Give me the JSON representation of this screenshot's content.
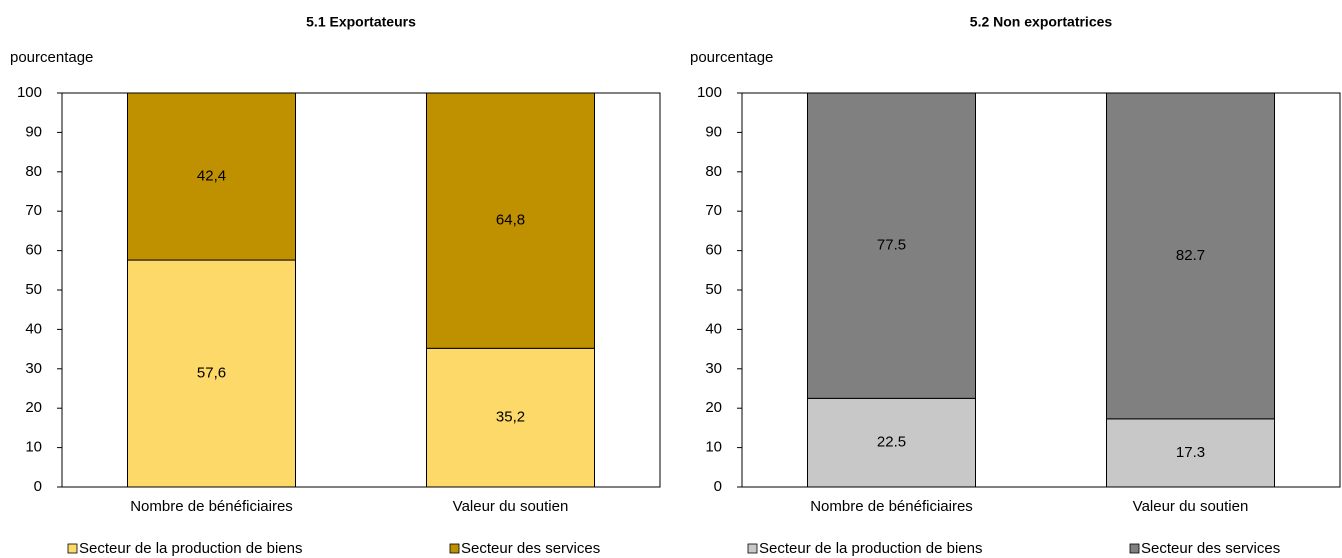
{
  "chart_data": [
    {
      "type": "bar",
      "stacked": true,
      "title": "5.1 Exportateurs",
      "y_label": "pourcentage",
      "categories": [
        "Nombre de bénéficiaires",
        "Valeur du soutien"
      ],
      "series": [
        {
          "name": "Secteur de la production de biens",
          "color": "#fdd96a",
          "values": [
            57.6,
            35.2
          ],
          "value_labels": [
            "57,6",
            "35,2"
          ]
        },
        {
          "name": "Secteur des services",
          "color": "#bf9000",
          "values": [
            42.4,
            64.8
          ],
          "value_labels": [
            "42,4",
            "64,8"
          ]
        }
      ],
      "ylim": [
        0,
        100
      ],
      "yticks": [
        0,
        10,
        20,
        30,
        40,
        50,
        60,
        70,
        80,
        90,
        100
      ],
      "grid": false
    },
    {
      "type": "bar",
      "stacked": true,
      "title": "5.2 Non exportatrices",
      "y_label": "pourcentage",
      "categories": [
        "Nombre de bénéficiaires",
        "Valeur du soutien"
      ],
      "series": [
        {
          "name": "Secteur de la production de biens",
          "color": "#c8c8c8",
          "values": [
            22.5,
            17.3
          ]
        },
        {
          "name": "Secteur des services",
          "color": "#808080",
          "values": [
            77.5,
            82.7
          ]
        }
      ],
      "ylim": [
        0,
        100
      ],
      "yticks": [
        0,
        10,
        20,
        30,
        40,
        50,
        60,
        70,
        80,
        90,
        100
      ],
      "grid": false
    }
  ]
}
